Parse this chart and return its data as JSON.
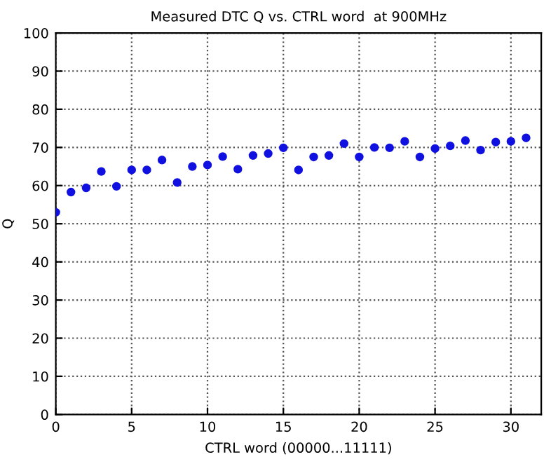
{
  "chart_data": {
    "type": "scatter",
    "title": "Measured DTC Q vs. CTRL word  at 900MHz",
    "xlabel": "CTRL word (00000...11111)",
    "ylabel": "Q",
    "x": [
      0,
      1,
      2,
      3,
      4,
      5,
      6,
      7,
      8,
      9,
      10,
      11,
      12,
      13,
      14,
      15,
      16,
      17,
      18,
      19,
      20,
      21,
      22,
      23,
      24,
      25,
      26,
      27,
      28,
      29,
      30,
      31
    ],
    "series": [
      {
        "color": "#1010e0",
        "values": [
          53,
          58.3,
          59.4,
          63.7,
          59.8,
          64.1,
          64.1,
          66.7,
          60.8,
          65,
          65.4,
          67.6,
          64.3,
          67.9,
          68.4,
          69.9,
          64.1,
          67.5,
          67.9,
          71,
          67.5,
          70,
          69.9,
          71.6,
          67.5,
          69.7,
          70.4,
          71.8,
          69.3,
          71.4,
          71.6,
          72.5
        ]
      }
    ],
    "xlim": [
      0,
      32
    ],
    "xticks": [
      0,
      5,
      10,
      15,
      20,
      25,
      30
    ],
    "ylim": [
      0,
      100
    ],
    "yticks": [
      0,
      10,
      20,
      30,
      40,
      50,
      60,
      70,
      80,
      90,
      100
    ],
    "grid": true,
    "marker": "circle",
    "legend": false
  }
}
